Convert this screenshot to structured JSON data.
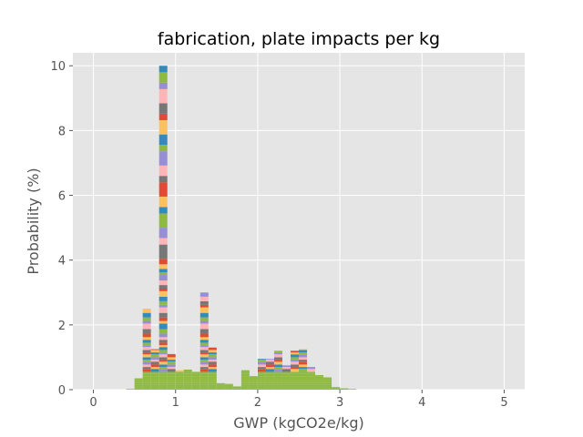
{
  "chart_data": {
    "type": "bar",
    "subtype": "stacked-histogram",
    "title": "fabrication, plate impacts per kg",
    "xlabel": "GWP (kgCO2e/kg)",
    "ylabel": "Probability (%)",
    "xlim": [
      -0.25,
      5.25
    ],
    "ylim": [
      0,
      10.4
    ],
    "xticks": [
      0,
      1,
      2,
      3,
      4,
      5
    ],
    "yticks": [
      0,
      2,
      4,
      6,
      8,
      10
    ],
    "grid": true,
    "style": "ggplot",
    "background_color": "#E5E5E5",
    "bin_width": 0.1,
    "palette": [
      "#E24A33",
      "#348ABD",
      "#988ED5",
      "#777777",
      "#FBC15E",
      "#8EBA42",
      "#FFB5B8"
    ],
    "totals": [
      {
        "x": 0.45,
        "y": 0.02
      },
      {
        "x": 0.55,
        "y": 0.35
      },
      {
        "x": 0.65,
        "y": 2.5
      },
      {
        "x": 0.75,
        "y": 1.25
      },
      {
        "x": 0.85,
        "y": 10.0
      },
      {
        "x": 0.95,
        "y": 1.1
      },
      {
        "x": 1.05,
        "y": 0.6
      },
      {
        "x": 1.15,
        "y": 0.62
      },
      {
        "x": 1.25,
        "y": 0.55
      },
      {
        "x": 1.35,
        "y": 3.0
      },
      {
        "x": 1.45,
        "y": 1.3
      },
      {
        "x": 1.55,
        "y": 0.2
      },
      {
        "x": 1.65,
        "y": 0.18
      },
      {
        "x": 1.75,
        "y": 0.1
      },
      {
        "x": 1.85,
        "y": 0.6
      },
      {
        "x": 1.95,
        "y": 0.42
      },
      {
        "x": 2.05,
        "y": 0.95
      },
      {
        "x": 2.15,
        "y": 0.95
      },
      {
        "x": 2.25,
        "y": 1.2
      },
      {
        "x": 2.35,
        "y": 0.75
      },
      {
        "x": 2.45,
        "y": 1.2
      },
      {
        "x": 2.55,
        "y": 1.25
      },
      {
        "x": 2.65,
        "y": 0.7
      },
      {
        "x": 2.75,
        "y": 0.45
      },
      {
        "x": 2.85,
        "y": 0.38
      },
      {
        "x": 2.95,
        "y": 0.08
      },
      {
        "x": 3.05,
        "y": 0.04
      },
      {
        "x": 3.15,
        "y": 0.02
      }
    ]
  }
}
